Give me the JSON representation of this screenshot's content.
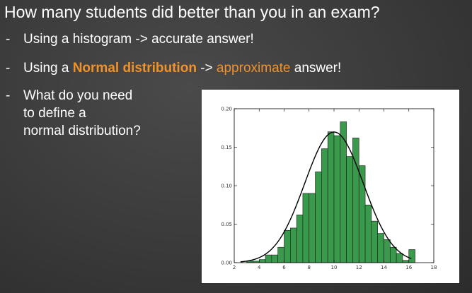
{
  "slide": {
    "title": "How many students did better than you in an exam?",
    "bullets": [
      {
        "dash": "-",
        "text": "Using a histogram -> accurate answer!"
      },
      {
        "dash": "-",
        "pre": "Using a ",
        "bold": "Normal distribution",
        "mid": " -> ",
        "accent": "approximate",
        "post": " answer!"
      },
      {
        "dash": "-",
        "lines": [
          "What do you need",
          "to define a",
          "normal distribution?"
        ]
      }
    ],
    "accent_color": "#f0922a"
  },
  "chart_data": {
    "type": "bar",
    "title": "",
    "xlabel": "",
    "ylabel": "",
    "xlim": [
      2,
      18
    ],
    "ylim": [
      0,
      0.2
    ],
    "xticks": [
      2,
      4,
      6,
      8,
      10,
      12,
      14,
      16,
      18
    ],
    "yticks": [
      "0.00",
      "0.05",
      "0.10",
      "0.15",
      "0.20"
    ],
    "bin_width": 0.5,
    "bins": [
      {
        "x": 3.0,
        "value": 0.002
      },
      {
        "x": 3.5,
        "value": 0.002
      },
      {
        "x": 4.0,
        "value": 0.004
      },
      {
        "x": 4.5,
        "value": 0.01
      },
      {
        "x": 5.0,
        "value": 0.01
      },
      {
        "x": 5.5,
        "value": 0.02
      },
      {
        "x": 6.0,
        "value": 0.042
      },
      {
        "x": 6.5,
        "value": 0.045
      },
      {
        "x": 7.0,
        "value": 0.062
      },
      {
        "x": 7.5,
        "value": 0.09
      },
      {
        "x": 8.0,
        "value": 0.09
      },
      {
        "x": 8.5,
        "value": 0.118
      },
      {
        "x": 9.0,
        "value": 0.148
      },
      {
        "x": 9.5,
        "value": 0.17
      },
      {
        "x": 10.0,
        "value": 0.165
      },
      {
        "x": 10.5,
        "value": 0.183
      },
      {
        "x": 11.0,
        "value": 0.138
      },
      {
        "x": 11.5,
        "value": 0.162
      },
      {
        "x": 12.0,
        "value": 0.126
      },
      {
        "x": 12.5,
        "value": 0.075
      },
      {
        "x": 13.0,
        "value": 0.054
      },
      {
        "x": 13.5,
        "value": 0.038
      },
      {
        "x": 14.0,
        "value": 0.03
      },
      {
        "x": 14.5,
        "value": 0.02
      },
      {
        "x": 15.0,
        "value": 0.012
      },
      {
        "x": 15.5,
        "value": 0.003
      },
      {
        "x": 16.0,
        "value": 0.017
      }
    ],
    "curve": {
      "type": "normal_pdf",
      "mean": 10,
      "std": 2.35
    },
    "bar_color": "#3a9a4c",
    "curve_color": "#000000",
    "grid": false
  }
}
